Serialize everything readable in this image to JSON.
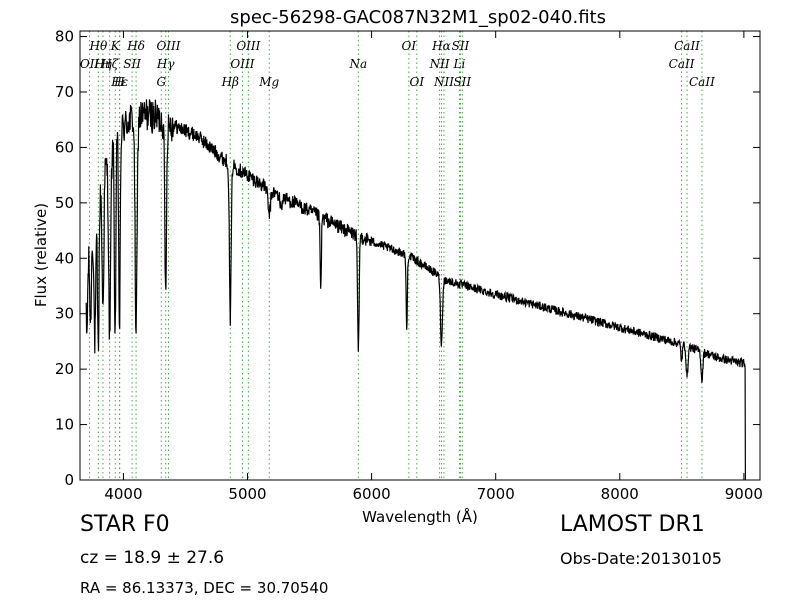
{
  "chart_data": {
    "type": "line",
    "title": "spec-56298-GAC087N32M1_sp02-040.fits",
    "xlabel": "Wavelength (Å)",
    "ylabel": "Flux (relative)",
    "xlim": [
      3650,
      9130
    ],
    "ylim": [
      0,
      81
    ],
    "xticks": [
      4000,
      5000,
      6000,
      7000,
      8000,
      9000
    ],
    "yticks": [
      0,
      10,
      20,
      30,
      40,
      50,
      60,
      70,
      80
    ],
    "grid": false,
    "series": [
      {
        "color": "#000000",
        "continuum": [
          [
            3700,
            38
          ],
          [
            3780,
            47
          ],
          [
            3850,
            56
          ],
          [
            3950,
            62
          ],
          [
            4050,
            65
          ],
          [
            4200,
            66
          ],
          [
            4400,
            64
          ],
          [
            4600,
            62
          ],
          [
            4800,
            58
          ],
          [
            5000,
            55
          ],
          [
            5200,
            52
          ],
          [
            5500,
            48.5
          ],
          [
            5800,
            45
          ],
          [
            6000,
            43
          ],
          [
            6300,
            40.5
          ],
          [
            6600,
            36
          ],
          [
            7000,
            33.5
          ],
          [
            7500,
            30.5
          ],
          [
            8000,
            27.5
          ],
          [
            8500,
            24.5
          ],
          [
            8800,
            22
          ],
          [
            9000,
            21
          ],
          [
            9012,
            20.5
          ]
        ],
        "absorption": [
          [
            3705,
            26,
            6
          ],
          [
            3735,
            28,
            6
          ],
          [
            3770,
            25,
            7
          ],
          [
            3797,
            23.5,
            6
          ],
          [
            3835,
            31,
            7
          ],
          [
            3889,
            26,
            8
          ],
          [
            3933,
            26,
            6
          ],
          [
            3968,
            27,
            6
          ],
          [
            4102,
            27,
            8
          ],
          [
            4340,
            34,
            7
          ],
          [
            4861,
            29,
            7
          ],
          [
            5175,
            48,
            10
          ],
          [
            5270,
            49,
            8
          ],
          [
            5590,
            34,
            5
          ],
          [
            5893,
            22.5,
            6
          ],
          [
            6283,
            27,
            5
          ],
          [
            6563,
            24.5,
            8
          ],
          [
            8498,
            21.5,
            6
          ],
          [
            8542,
            18.5,
            7
          ],
          [
            8662,
            18,
            7
          ]
        ],
        "cutoff": [
          9012,
          0
        ]
      }
    ],
    "lines": [
      {
        "label": "OII",
        "x": 3727,
        "level": 2
      },
      {
        "label": "Hθ",
        "x": 3798,
        "level": 1
      },
      {
        "label": "Hη",
        "x": 3835,
        "level": 2
      },
      {
        "label": "Hζ",
        "x": 3889,
        "level": 2
      },
      {
        "label": "K",
        "x": 3934,
        "level": 1
      },
      {
        "label": "Hε",
        "x": 3970,
        "level": 3
      },
      {
        "label": "H",
        "x": 3968,
        "level": 3
      },
      {
        "label": "SII",
        "x": 4070,
        "level": 2
      },
      {
        "label": "Hδ",
        "x": 4102,
        "level": 1
      },
      {
        "label": "G",
        "x": 4305,
        "level": 3
      },
      {
        "label": "Hγ",
        "x": 4341,
        "level": 2
      },
      {
        "label": "OIII",
        "x": 4363,
        "level": 1
      },
      {
        "label": "Hβ",
        "x": 4861,
        "level": 3
      },
      {
        "label": "OIII",
        "x": 4959,
        "level": 2
      },
      {
        "label": "OIII",
        "x": 5007,
        "level": 1
      },
      {
        "label": "Mg",
        "x": 5175,
        "level": 3
      },
      {
        "label": "Na",
        "x": 5893,
        "level": 2
      },
      {
        "label": "OI",
        "x": 6300,
        "level": 1
      },
      {
        "label": "OI",
        "x": 6364,
        "level": 3
      },
      {
        "label": "NII",
        "x": 6548,
        "level": 2
      },
      {
        "label": "Hα",
        "x": 6563,
        "level": 1
      },
      {
        "label": "NII",
        "x": 6583,
        "level": 3
      },
      {
        "label": "Li",
        "x": 6708,
        "level": 2
      },
      {
        "label": "SII",
        "x": 6716,
        "level": 1
      },
      {
        "label": "SII",
        "x": 6731,
        "level": 3
      },
      {
        "label": "CaII",
        "x": 8498,
        "level": 2
      },
      {
        "label": "CaII",
        "x": 8542,
        "level": 1
      },
      {
        "label": "CaII",
        "x": 8662,
        "level": 3
      }
    ]
  },
  "info": {
    "object_class": "STAR   F0",
    "redshift": "cz = 18.9  ± 27.6",
    "coords": "RA = 86.13373, DEC = 30.70540",
    "survey": "LAMOST DR1",
    "obs_date": "Obs-Date:20130105"
  }
}
